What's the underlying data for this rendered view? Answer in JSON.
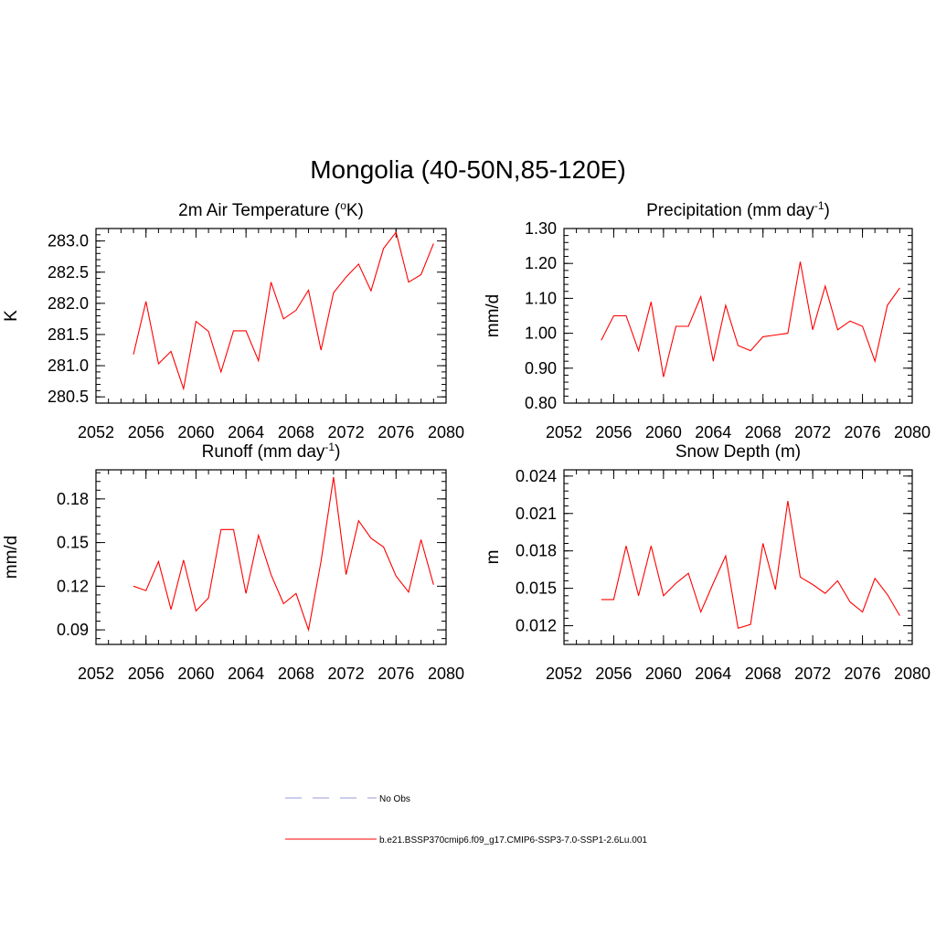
{
  "title": "Mongolia (40-50N,85-120E)",
  "legend": {
    "placement": "bottom-center",
    "entries": [
      {
        "label": "No Obs",
        "color": "#9999dd",
        "dash": "dashed"
      },
      {
        "label": "b.e21.BSSP370cmip6.f09_g17.CMIP6-SSP3-7.0-SSP1-2.6Lu.001",
        "color": "#ff0000",
        "dash": "solid"
      }
    ]
  },
  "chart_data": [
    {
      "type": "line",
      "title": "2m Air Temperature (",
      "title_sup": "o",
      "title_post": "K)",
      "ylabel": "K",
      "xlim": [
        2052,
        2080
      ],
      "ylim": [
        280.4,
        283.2
      ],
      "xticks": [
        2052,
        2056,
        2060,
        2064,
        2068,
        2072,
        2076,
        2080
      ],
      "xtick_labels": [
        "2052",
        "2056",
        "2060",
        "2064",
        "2068",
        "2072",
        "2076",
        "2080"
      ],
      "yticks": [
        280.5,
        281.0,
        281.5,
        282.0,
        282.5,
        283.0
      ],
      "ytick_labels": [
        "280.5",
        "281.0",
        "281.5",
        "282.0",
        "282.5",
        "283.0"
      ],
      "grid": false,
      "series": [
        {
          "color": "#ff0000",
          "x": [
            2055,
            2056,
            2057,
            2058,
            2059,
            2060,
            2061,
            2062,
            2063,
            2064,
            2065,
            2066,
            2067,
            2068,
            2069,
            2070,
            2071,
            2072,
            2073,
            2074,
            2075,
            2076,
            2077,
            2078,
            2079
          ],
          "values": [
            281.18,
            282.03,
            281.03,
            281.23,
            280.63,
            281.71,
            281.55,
            280.9,
            281.56,
            281.56,
            281.08,
            282.34,
            281.75,
            281.89,
            282.21,
            281.25,
            282.17,
            282.42,
            282.63,
            282.2,
            282.88,
            283.14,
            282.34,
            282.46,
            282.96
          ]
        }
      ]
    },
    {
      "type": "line",
      "title": "Precipitation (mm day",
      "title_sup": "-1",
      "title_post": ")",
      "ylabel": "mm/d",
      "xlim": [
        2052,
        2080
      ],
      "ylim": [
        0.8,
        1.3
      ],
      "xticks": [
        2052,
        2056,
        2060,
        2064,
        2068,
        2072,
        2076,
        2080
      ],
      "xtick_labels": [
        "2052",
        "2056",
        "2060",
        "2064",
        "2068",
        "2072",
        "2076",
        "2080"
      ],
      "yticks": [
        0.8,
        0.9,
        1.0,
        1.1,
        1.2,
        1.3
      ],
      "ytick_labels": [
        "0.80",
        "0.90",
        "1.00",
        "1.10",
        "1.20",
        "1.30"
      ],
      "grid": false,
      "series": [
        {
          "color": "#ff0000",
          "x": [
            2055,
            2056,
            2057,
            2058,
            2059,
            2060,
            2061,
            2062,
            2063,
            2064,
            2065,
            2066,
            2067,
            2068,
            2069,
            2070,
            2071,
            2072,
            2073,
            2074,
            2075,
            2076,
            2077,
            2078,
            2079
          ],
          "values": [
            0.98,
            1.05,
            1.05,
            0.95,
            1.09,
            0.875,
            1.02,
            1.02,
            1.105,
            0.92,
            1.08,
            0.965,
            0.95,
            0.99,
            0.995,
            1.0,
            1.205,
            1.01,
            1.135,
            1.01,
            1.035,
            1.02,
            0.92,
            1.08,
            1.13
          ]
        }
      ]
    },
    {
      "type": "line",
      "title": "Runoff (mm day",
      "title_sup": "-1",
      "title_post": ")",
      "ylabel": "mm/d",
      "xlim": [
        2052,
        2080
      ],
      "ylim": [
        0.08,
        0.2
      ],
      "xticks": [
        2052,
        2056,
        2060,
        2064,
        2068,
        2072,
        2076,
        2080
      ],
      "xtick_labels": [
        "2052",
        "2056",
        "2060",
        "2064",
        "2068",
        "2072",
        "2076",
        "2080"
      ],
      "yticks": [
        0.09,
        0.12,
        0.15,
        0.18
      ],
      "ytick_labels": [
        "0.09",
        "0.12",
        "0.15",
        "0.18"
      ],
      "grid": false,
      "series": [
        {
          "color": "#ff0000",
          "x": [
            2055,
            2056,
            2057,
            2058,
            2059,
            2060,
            2061,
            2062,
            2063,
            2064,
            2065,
            2066,
            2067,
            2068,
            2069,
            2070,
            2071,
            2072,
            2073,
            2074,
            2075,
            2076,
            2077,
            2078,
            2079
          ],
          "values": [
            0.12,
            0.117,
            0.137,
            0.104,
            0.138,
            0.103,
            0.112,
            0.159,
            0.159,
            0.115,
            0.155,
            0.128,
            0.108,
            0.115,
            0.09,
            0.137,
            0.195,
            0.128,
            0.165,
            0.153,
            0.147,
            0.127,
            0.116,
            0.152,
            0.121
          ]
        }
      ]
    },
    {
      "type": "line",
      "title": "Snow Depth (m)",
      "title_sup": "",
      "title_post": "",
      "ylabel": "m",
      "xlim": [
        2052,
        2080
      ],
      "ylim": [
        0.0105,
        0.0245
      ],
      "xticks": [
        2052,
        2056,
        2060,
        2064,
        2068,
        2072,
        2076,
        2080
      ],
      "xtick_labels": [
        "2052",
        "2056",
        "2060",
        "2064",
        "2068",
        "2072",
        "2076",
        "2080"
      ],
      "yticks": [
        0.012,
        0.015,
        0.018,
        0.021,
        0.024
      ],
      "ytick_labels": [
        "0.012",
        "0.015",
        "0.018",
        "0.021",
        "0.024"
      ],
      "grid": false,
      "series": [
        {
          "color": "#ff0000",
          "x": [
            2055,
            2056,
            2057,
            2058,
            2059,
            2060,
            2061,
            2062,
            2063,
            2064,
            2065,
            2066,
            2067,
            2068,
            2069,
            2070,
            2071,
            2072,
            2073,
            2074,
            2075,
            2076,
            2077,
            2078,
            2079
          ],
          "values": [
            0.0141,
            0.0141,
            0.0184,
            0.0144,
            0.0184,
            0.0144,
            0.0154,
            0.0162,
            0.0131,
            0.0154,
            0.0176,
            0.0118,
            0.0121,
            0.0186,
            0.0149,
            0.022,
            0.0159,
            0.0153,
            0.0146,
            0.0156,
            0.0139,
            0.0131,
            0.0158,
            0.0145,
            0.0128
          ]
        }
      ]
    }
  ]
}
